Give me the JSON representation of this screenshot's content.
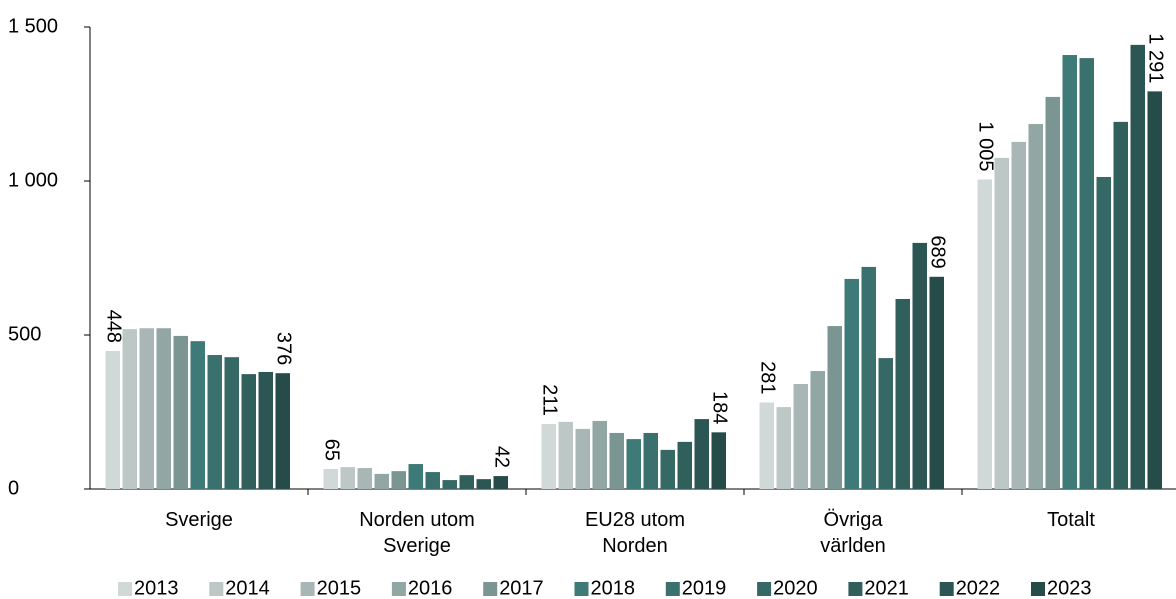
{
  "chart_data": {
    "type": "bar",
    "categories": [
      "Sverige",
      "Norden utom\nSverige",
      "EU28 utom\nNorden",
      "Övriga\nvärlden",
      "Totalt"
    ],
    "series": [
      {
        "name": "2013",
        "color": "#d0d8d8",
        "values": [
          448,
          65,
          211,
          281,
          1005
        ],
        "value_labels": [
          "448",
          "65",
          "211",
          "281",
          "1 005"
        ]
      },
      {
        "name": "2014",
        "color": "#bcc7c6",
        "values": [
          519,
          71,
          218,
          266,
          1075
        ]
      },
      {
        "name": "2015",
        "color": "#a8b7b5",
        "values": [
          522,
          68,
          195,
          341,
          1127
        ]
      },
      {
        "name": "2016",
        "color": "#92a6a3",
        "values": [
          522,
          49,
          221,
          383,
          1185
        ]
      },
      {
        "name": "2017",
        "color": "#7b9592",
        "values": [
          497,
          58,
          182,
          529,
          1273
        ]
      },
      {
        "name": "2018",
        "color": "#3e7a77",
        "values": [
          480,
          81,
          162,
          682,
          1409
        ]
      },
      {
        "name": "2019",
        "color": "#3a716e",
        "values": [
          435,
          55,
          182,
          721,
          1399
        ]
      },
      {
        "name": "2020",
        "color": "#366865",
        "values": [
          428,
          29,
          127,
          425,
          1013
        ]
      },
      {
        "name": "2021",
        "color": "#315f5c",
        "values": [
          373,
          45,
          153,
          617,
          1192
        ]
      },
      {
        "name": "2022",
        "color": "#2c5654",
        "values": [
          380,
          32,
          227,
          799,
          1442
        ]
      },
      {
        "name": "2023",
        "color": "#264c4a",
        "values": [
          376,
          42,
          184,
          689,
          1291
        ],
        "value_labels": [
          "376",
          "42",
          "184",
          "689",
          "1 291"
        ]
      }
    ],
    "ylim": [
      0,
      1500
    ],
    "yticks": [
      0,
      500,
      {
        "value": 1000,
        "label": "1 000"
      },
      {
        "value": 1500,
        "label": "1 500"
      }
    ],
    "grid": false,
    "legend": "bottom"
  }
}
